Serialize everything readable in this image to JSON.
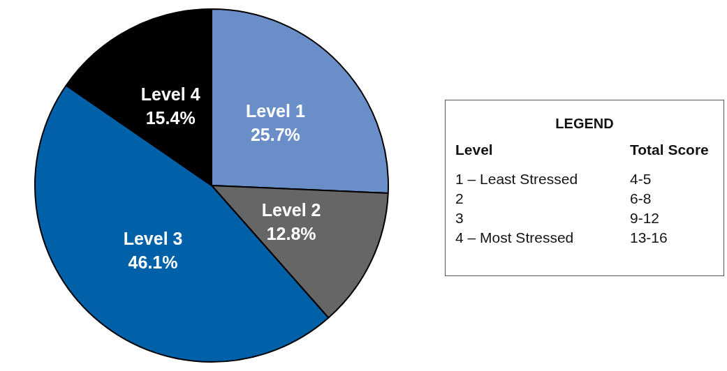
{
  "chart_data": {
    "type": "pie",
    "categories": [
      "Level 1",
      "Level 2",
      "Level 3",
      "Level 4"
    ],
    "values": [
      25.7,
      12.8,
      46.1,
      15.4
    ],
    "colors": [
      "#6a8ec8",
      "#666666",
      "#0060a8",
      "#000000"
    ],
    "value_labels": [
      "25.7%",
      "12.8%",
      "46.1%",
      "15.4%"
    ],
    "legend": false,
    "legend_title": "LEGEND",
    "annotations": [
      "Level",
      "Total Score",
      "1 – Least Stressed",
      "4-5",
      "2",
      "6-8",
      "3",
      "9-12",
      "4 – Most Stressed",
      "13-16"
    ]
  }
}
